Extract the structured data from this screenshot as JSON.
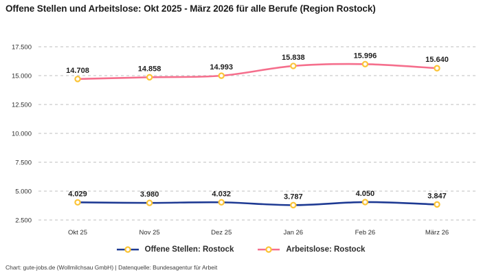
{
  "title": "Offene Stellen und Arbeitslose: Okt 2025 - März 2026 für alle Berufe (Region Rostock)",
  "attribution": "Chart: gute-jobs.de (Wollmilchsau GmbH) | Datenquelle: Bundesagentur für Arbeit",
  "colors": {
    "open_positions_line": "#1e3a93",
    "unemployed_line": "#f56e8c",
    "marker_stroke": "#fbc437",
    "marker_fill": "#ffffff",
    "grid": "#c9c9c9",
    "tick_text": "#2e2e2e",
    "data_label_text": "#1d1d1d"
  },
  "chart_data": {
    "type": "line",
    "title": "Offene Stellen und Arbeitslose: Okt 2025 - März 2026 für alle Berufe (Region Rostock)",
    "categories": [
      "Okt 25",
      "Nov 25",
      "Dez 25",
      "Jan 26",
      "Feb 26",
      "März 26"
    ],
    "series": [
      {
        "name": "Offene Stellen: Rostock",
        "color": "#1e3a93",
        "values": [
          4029,
          3980,
          4032,
          3787,
          4050,
          3847
        ],
        "data_labels": [
          "4.029",
          "3.980",
          "4.032",
          "3.787",
          "4.050",
          "3.847"
        ]
      },
      {
        "name": "Arbeitslose: Rostock",
        "color": "#f56e8c",
        "values": [
          14708,
          14858,
          14993,
          15838,
          15996,
          15640
        ],
        "data_labels": [
          "14.708",
          "14.858",
          "14.993",
          "15.838",
          "15.996",
          "15.640"
        ]
      }
    ],
    "y_ticks": [
      2500,
      5000,
      7500,
      10000,
      12500,
      15000,
      17500
    ],
    "y_tick_labels": [
      "2.500",
      "5.000",
      "7.500",
      "10.000",
      "12.500",
      "15.000",
      "17.500"
    ],
    "ylim": [
      2500,
      17500
    ],
    "grid": "dashed-horizontal",
    "legend_position": "bottom",
    "show_data_labels": true,
    "number_format": "thousands-dot"
  }
}
